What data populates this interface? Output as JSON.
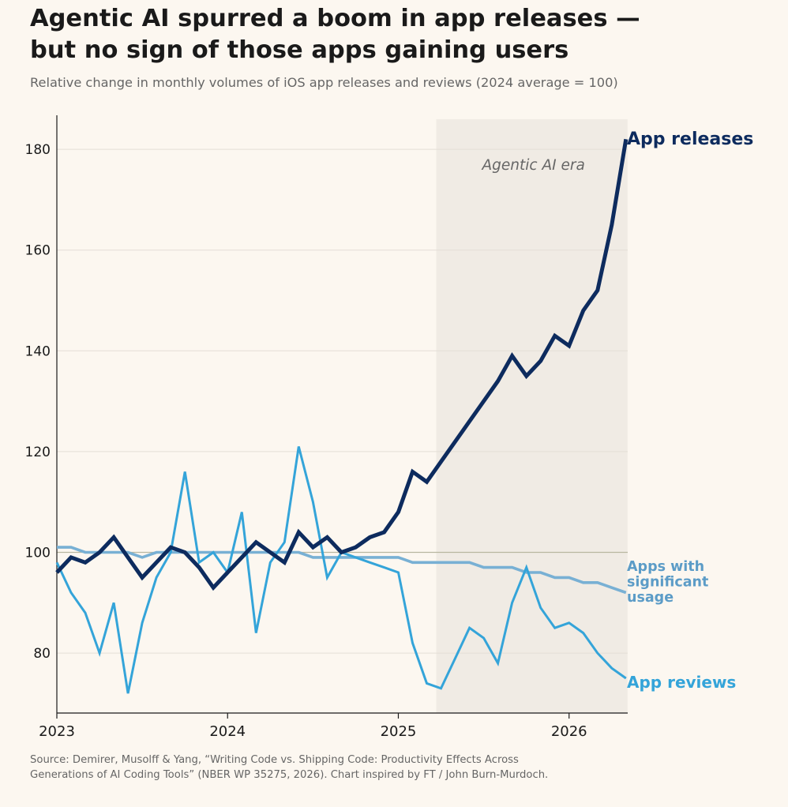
{
  "header": {
    "title_line1": "Agentic AI spurred a boom in app releases —",
    "title_line2": "but no sign of those apps gaining users",
    "subtitle": "Relative change in monthly volumes of iOS app releases and reviews (2024 average = 100)"
  },
  "footer": {
    "source_line1": "Source: Demirer, Musolff & Yang, “Writing Code vs. Shipping Code: Productivity Effects Across",
    "source_line2": "Generations of AI Coding Tools” (NBER WP 35275, 2026).  Chart inspired by FT / John Burn-Murdoch."
  },
  "chart_data": {
    "type": "line",
    "title": "Agentic AI spurred a boom in app releases — but no sign of those apps gaining users",
    "subtitle": "Relative change in monthly volumes of iOS app releases and reviews (2024 average = 100)",
    "xlabel": "",
    "ylabel": "",
    "x_ticks": [
      "2023",
      "2024",
      "2025",
      "2026"
    ],
    "y_ticks": [
      80,
      100,
      120,
      140,
      160,
      180
    ],
    "ylim": [
      68,
      186
    ],
    "xlim": [
      "2023-01",
      "2026-05"
    ],
    "grid": "horizontal",
    "reference_line": 100,
    "shaded_region": {
      "label": "Agentic AI era",
      "x_start": "2025-04",
      "x_end": "2026-05"
    },
    "x": [
      "2023-01",
      "2023-02",
      "2023-03",
      "2023-04",
      "2023-05",
      "2023-06",
      "2023-07",
      "2023-08",
      "2023-09",
      "2023-10",
      "2023-11",
      "2023-12",
      "2024-01",
      "2024-02",
      "2024-03",
      "2024-04",
      "2024-05",
      "2024-06",
      "2024-07",
      "2024-08",
      "2024-09",
      "2024-10",
      "2024-11",
      "2024-12",
      "2025-01",
      "2025-02",
      "2025-03",
      "2025-04",
      "2025-05",
      "2025-06",
      "2025-07",
      "2025-08",
      "2025-09",
      "2025-10",
      "2025-11",
      "2025-12",
      "2026-01",
      "2026-02",
      "2026-03",
      "2026-04",
      "2026-05"
    ],
    "series": [
      {
        "name": "App releases",
        "color": "#0d2b5e",
        "values": [
          96,
          99,
          98,
          100,
          103,
          99,
          95,
          98,
          101,
          100,
          97,
          93,
          96,
          99,
          102,
          100,
          98,
          104,
          101,
          103,
          100,
          101,
          103,
          104,
          108,
          116,
          114,
          118,
          122,
          126,
          130,
          134,
          139,
          135,
          138,
          143,
          141,
          148,
          152,
          165,
          182
        ]
      },
      {
        "name": "Apps with significant usage",
        "color": "#78b0d4",
        "values": [
          101,
          101,
          100,
          100,
          100,
          100,
          99,
          100,
          100,
          100,
          100,
          100,
          100,
          100,
          100,
          100,
          100,
          100,
          99,
          99,
          99,
          99,
          99,
          99,
          99,
          98,
          98,
          98,
          98,
          98,
          97,
          97,
          97,
          96,
          96,
          95,
          95,
          94,
          94,
          93,
          92
        ]
      },
      {
        "name": "App reviews",
        "color": "#34a4d9",
        "values": [
          98,
          92,
          88,
          80,
          90,
          72,
          86,
          95,
          100,
          116,
          98,
          100,
          96,
          108,
          84,
          98,
          102,
          121,
          110,
          95,
          100,
          99,
          98,
          97,
          96,
          82,
          74,
          73,
          79,
          85,
          83,
          78,
          90,
          97,
          89,
          85,
          86,
          84,
          80,
          77,
          75
        ]
      }
    ],
    "series_labels": {
      "releases": "App releases",
      "significant": [
        "Apps with",
        "significant",
        "usage"
      ],
      "reviews": "App reviews"
    }
  }
}
